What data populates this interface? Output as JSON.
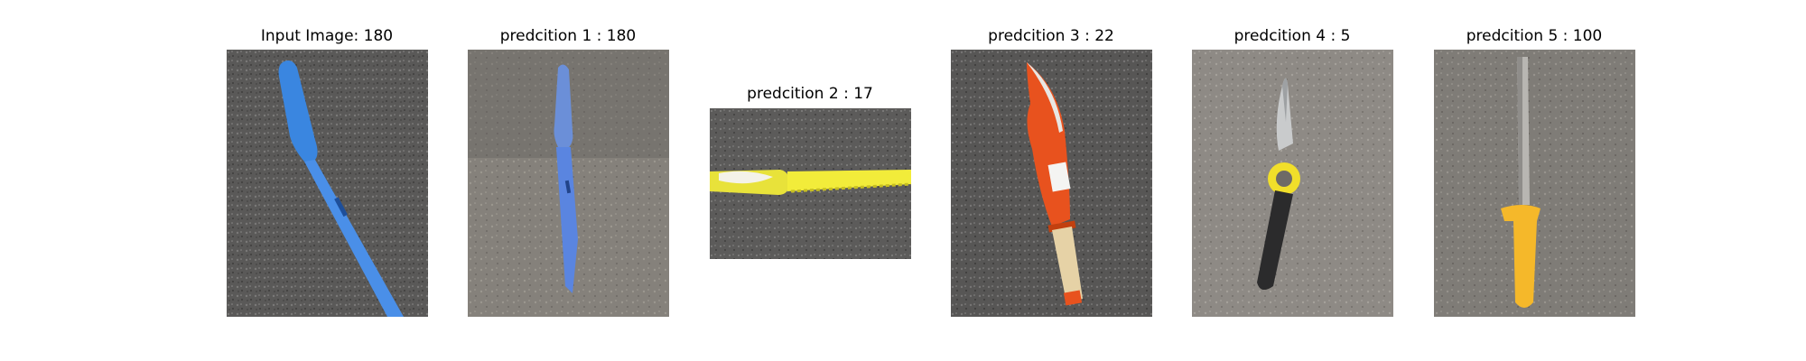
{
  "panels": [
    {
      "title": "Input Image: 180",
      "subject": "blue-knife",
      "background": "dark-asphalt"
    },
    {
      "title": "predcition 1 : 180",
      "subject": "blue-knife",
      "background": "light-concrete"
    },
    {
      "title": "predcition 2 : 17",
      "subject": "yellow-bread-knife",
      "background": "dark-asphalt"
    },
    {
      "title": "predcition 3 : 22",
      "subject": "orange-machete",
      "background": "dark-asphalt"
    },
    {
      "title": "predcition 4 : 5",
      "subject": "folding-knife-black-handle",
      "background": "light-concrete"
    },
    {
      "title": "predcition 5 : 100",
      "subject": "yellow-handle-knife",
      "background": "light-concrete"
    }
  ]
}
